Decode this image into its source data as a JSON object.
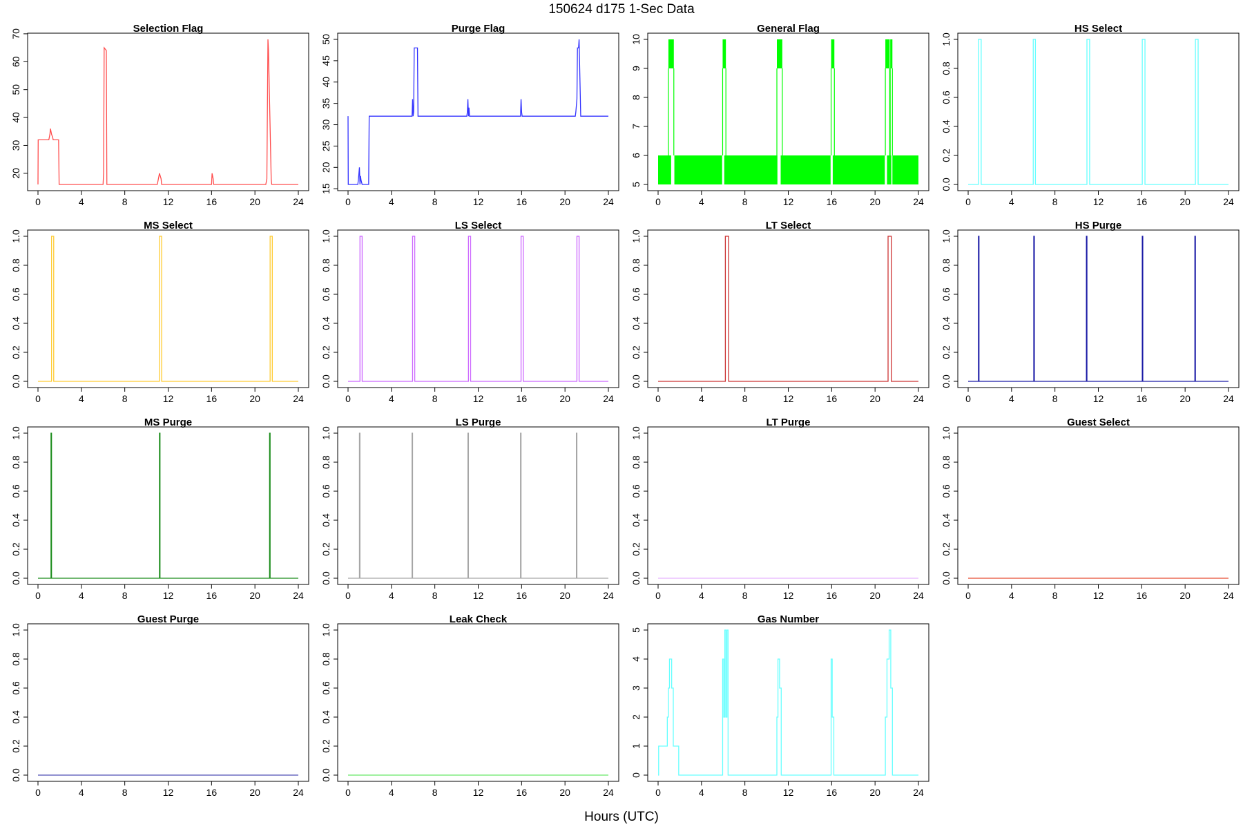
{
  "figure": {
    "title": "150624   d175   1-Sec Data",
    "xlabel": "Hours (UTC)"
  },
  "chart_data": [
    {
      "type": "line",
      "title": "Selection Flag",
      "color": "#ff4d4d",
      "xlim": [
        0,
        24
      ],
      "ylim": [
        16,
        68
      ],
      "xticks": [
        0,
        4,
        8,
        12,
        16,
        20,
        24
      ],
      "yticks": [
        20,
        30,
        40,
        50,
        60,
        70
      ],
      "x": [
        0,
        0.02,
        1.0,
        1.05,
        1.1,
        1.15,
        1.25,
        1.35,
        1.4,
        1.45,
        1.9,
        1.95,
        6.0,
        6.05,
        6.1,
        6.3,
        6.35,
        6.4,
        11.0,
        11.1,
        11.2,
        11.35,
        11.4,
        16.0,
        16.05,
        16.15,
        16.2,
        21.0,
        21.05,
        21.1,
        21.2,
        21.25,
        21.5,
        21.55,
        21.7,
        21.75,
        24.0
      ],
      "y": [
        16,
        32,
        32,
        33,
        34,
        36,
        34,
        33,
        32,
        32,
        32,
        16,
        16,
        20,
        65,
        64,
        16,
        16,
        16,
        18,
        20,
        18,
        16,
        16,
        20,
        18,
        16,
        16,
        17,
        18,
        68,
        64,
        18,
        16,
        16,
        16,
        16
      ]
    },
    {
      "type": "line",
      "title": "Purge Flag",
      "color": "#3333ff",
      "xlim": [
        0,
        24
      ],
      "ylim": [
        16,
        50
      ],
      "xticks": [
        0,
        4,
        8,
        12,
        16,
        20,
        24
      ],
      "yticks": [
        15,
        20,
        25,
        30,
        35,
        40,
        45,
        50
      ],
      "x": [
        0,
        0.02,
        0.9,
        0.95,
        1.05,
        1.1,
        1.15,
        1.2,
        1.3,
        1.35,
        1.9,
        1.95,
        5.9,
        5.95,
        6.0,
        6.05,
        6.1,
        6.4,
        6.45,
        10.95,
        11.0,
        11.05,
        11.1,
        11.15,
        11.2,
        11.25,
        15.9,
        15.95,
        16.0,
        16.05,
        16.1,
        20.95,
        21.0,
        21.1,
        21.15,
        21.25,
        21.3,
        21.45,
        21.5,
        24.0
      ],
      "y": [
        32,
        16,
        16,
        17,
        20,
        16,
        18,
        17,
        16,
        16,
        16,
        32,
        32,
        36,
        32,
        33,
        48,
        48,
        32,
        32,
        33,
        36,
        32,
        34,
        32,
        32,
        32,
        36,
        33,
        32,
        32,
        32,
        33,
        36,
        48,
        48,
        50,
        32,
        32,
        32
      ]
    },
    {
      "type": "area",
      "title": "General Flag",
      "color": "#00ff00",
      "xlim": [
        0,
        24
      ],
      "ylim": [
        5,
        10
      ],
      "xticks": [
        0,
        4,
        8,
        12,
        16,
        20,
        24
      ],
      "yticks": [
        5,
        6,
        7,
        8,
        9,
        10
      ],
      "band": {
        "low": 5,
        "high": 6,
        "gaps": [
          [
            1.2,
            1.5
          ],
          [
            5.9,
            6.1
          ],
          [
            11.0,
            11.3
          ],
          [
            15.9,
            16.1
          ],
          [
            20.9,
            21.1
          ],
          [
            21.5,
            21.6
          ]
        ]
      },
      "spikes": [
        {
          "x0": 0.95,
          "x1": 1.45,
          "top": 10,
          "mid": 9
        },
        {
          "x0": 5.95,
          "x1": 6.25,
          "top": 10,
          "mid": 9
        },
        {
          "x0": 10.95,
          "x1": 11.45,
          "top": 10,
          "mid": 9
        },
        {
          "x0": 15.95,
          "x1": 16.25,
          "top": 10,
          "mid": 9
        },
        {
          "x0": 20.95,
          "x1": 21.35,
          "top": 10,
          "mid": 9
        },
        {
          "x0": 21.4,
          "x1": 21.6,
          "top": 10,
          "mid": 9
        }
      ]
    },
    {
      "type": "line",
      "title": "HS Select",
      "color": "#66ffff",
      "xlim": [
        0,
        24
      ],
      "ylim": [
        0,
        1
      ],
      "xticks": [
        0,
        4,
        8,
        12,
        16,
        20,
        24
      ],
      "yticks": [
        0.0,
        0.2,
        0.4,
        0.6,
        0.8,
        1.0
      ],
      "x": [
        0,
        0.95,
        0.95,
        1.2,
        1.2,
        6.0,
        6.0,
        6.2,
        6.2,
        10.95,
        10.95,
        11.2,
        11.2,
        16.05,
        16.05,
        16.3,
        16.3,
        20.95,
        20.95,
        21.2,
        21.2,
        24.0
      ],
      "y": [
        0,
        0,
        1,
        1,
        0,
        0,
        1,
        1,
        0,
        0,
        1,
        1,
        0,
        0,
        1,
        1,
        0,
        0,
        1,
        1,
        0,
        0
      ]
    },
    {
      "type": "line",
      "title": "MS Select",
      "color": "#ffcc33",
      "xlim": [
        0,
        24
      ],
      "ylim": [
        0,
        1
      ],
      "xticks": [
        0,
        4,
        8,
        12,
        16,
        20,
        24
      ],
      "yticks": [
        0.0,
        0.2,
        0.4,
        0.6,
        0.8,
        1.0
      ],
      "x": [
        0,
        1.25,
        1.25,
        1.45,
        1.45,
        11.2,
        11.2,
        11.4,
        11.4,
        21.4,
        21.4,
        21.6,
        21.6,
        24.0
      ],
      "y": [
        0,
        0,
        1,
        1,
        0,
        0,
        1,
        1,
        0,
        0,
        1,
        1,
        0,
        0
      ]
    },
    {
      "type": "line",
      "title": "LS Select",
      "color": "#cc66ff",
      "xlim": [
        0,
        24
      ],
      "ylim": [
        0,
        1
      ],
      "xticks": [
        0,
        4,
        8,
        12,
        16,
        20,
        24
      ],
      "yticks": [
        0.0,
        0.2,
        0.4,
        0.6,
        0.8,
        1.0
      ],
      "x": [
        0,
        1.1,
        1.1,
        1.3,
        1.3,
        5.95,
        5.95,
        6.15,
        6.15,
        11.1,
        11.1,
        11.3,
        11.3,
        15.95,
        15.95,
        16.15,
        16.15,
        21.1,
        21.1,
        21.3,
        21.3,
        24.0
      ],
      "y": [
        0,
        0,
        1,
        1,
        0,
        0,
        1,
        1,
        0,
        0,
        1,
        1,
        0,
        0,
        1,
        1,
        0,
        0,
        1,
        1,
        0,
        0
      ]
    },
    {
      "type": "line",
      "title": "LT Select",
      "color": "#cc3333",
      "xlim": [
        0,
        24
      ],
      "ylim": [
        0,
        1
      ],
      "xticks": [
        0,
        4,
        8,
        12,
        16,
        20,
        24
      ],
      "yticks": [
        0.0,
        0.2,
        0.4,
        0.6,
        0.8,
        1.0
      ],
      "x": [
        0,
        6.2,
        6.2,
        6.5,
        6.5,
        21.2,
        21.2,
        21.5,
        21.5,
        24.0
      ],
      "y": [
        0,
        0,
        1,
        1,
        0,
        0,
        1,
        1,
        0,
        0
      ]
    },
    {
      "type": "line",
      "title": "HS Purge",
      "color": "#1a1aa6",
      "xlim": [
        0,
        24
      ],
      "ylim": [
        0,
        1
      ],
      "xticks": [
        0,
        4,
        8,
        12,
        16,
        20,
        24
      ],
      "yticks": [
        0.0,
        0.2,
        0.4,
        0.6,
        0.8,
        1.0
      ],
      "x": [
        0,
        0.95,
        0.95,
        1.0,
        1.0,
        6.05,
        6.05,
        6.1,
        6.1,
        10.9,
        10.9,
        10.95,
        10.95,
        16.05,
        16.05,
        16.1,
        16.1,
        20.9,
        20.9,
        20.95,
        20.95,
        24.0
      ],
      "y": [
        0,
        0,
        1,
        1,
        0,
        0,
        1,
        1,
        0,
        0,
        1,
        1,
        0,
        0,
        1,
        1,
        0,
        0,
        1,
        1,
        0,
        0
      ]
    },
    {
      "type": "line",
      "title": "MS Purge",
      "color": "#1a8c1a",
      "xlim": [
        0,
        24
      ],
      "ylim": [
        0,
        1
      ],
      "xticks": [
        0,
        4,
        8,
        12,
        16,
        20,
        24
      ],
      "yticks": [
        0.0,
        0.2,
        0.4,
        0.6,
        0.8,
        1.0
      ],
      "x": [
        0,
        1.2,
        1.2,
        1.25,
        1.25,
        11.2,
        11.2,
        11.25,
        11.25,
        21.35,
        21.35,
        21.4,
        21.4,
        24.0
      ],
      "y": [
        0,
        0,
        1,
        1,
        0,
        0,
        1,
        1,
        0,
        0,
        1,
        1,
        0,
        0
      ]
    },
    {
      "type": "line",
      "title": "LS Purge",
      "color": "#a6a6a6",
      "xlim": [
        0,
        24
      ],
      "ylim": [
        0,
        1
      ],
      "xticks": [
        0,
        4,
        8,
        12,
        16,
        20,
        24
      ],
      "yticks": [
        0.0,
        0.2,
        0.4,
        0.6,
        0.8,
        1.0
      ],
      "x": [
        0,
        1.05,
        1.05,
        1.1,
        1.1,
        5.9,
        5.9,
        5.95,
        5.95,
        11.05,
        11.05,
        11.1,
        11.1,
        15.9,
        15.9,
        15.95,
        15.95,
        21.05,
        21.05,
        21.1,
        21.1,
        24.0
      ],
      "y": [
        0,
        0,
        1,
        1,
        0,
        0,
        1,
        1,
        0,
        0,
        1,
        1,
        0,
        0,
        1,
        1,
        0,
        0,
        1,
        1,
        0,
        0
      ]
    },
    {
      "type": "line",
      "title": "LT Purge",
      "color": "#e6b3ff",
      "xlim": [
        0,
        24
      ],
      "ylim": [
        0,
        1
      ],
      "xticks": [
        0,
        4,
        8,
        12,
        16,
        20,
        24
      ],
      "yticks": [
        0.0,
        0.2,
        0.4,
        0.6,
        0.8,
        1.0
      ],
      "x": [
        0,
        24
      ],
      "y": [
        0,
        0
      ]
    },
    {
      "type": "line",
      "title": "Guest Select",
      "color": "#e64d33",
      "xlim": [
        0,
        24
      ],
      "ylim": [
        0,
        1
      ],
      "xticks": [
        0,
        4,
        8,
        12,
        16,
        20,
        24
      ],
      "yticks": [
        0.0,
        0.2,
        0.4,
        0.6,
        0.8,
        1.0
      ],
      "x": [
        0,
        24
      ],
      "y": [
        0,
        0
      ]
    },
    {
      "type": "line",
      "title": "Guest Purge",
      "color": "#4d4db3",
      "xlim": [
        0,
        24
      ],
      "ylim": [
        0,
        1
      ],
      "xticks": [
        0,
        4,
        8,
        12,
        16,
        20,
        24
      ],
      "yticks": [
        0.0,
        0.2,
        0.4,
        0.6,
        0.8,
        1.0
      ],
      "x": [
        0,
        24
      ],
      "y": [
        0,
        0
      ]
    },
    {
      "type": "line",
      "title": "Leak Check",
      "color": "#66e666",
      "xlim": [
        0,
        24
      ],
      "ylim": [
        0,
        1
      ],
      "xticks": [
        0,
        4,
        8,
        12,
        16,
        20,
        24
      ],
      "yticks": [
        0.0,
        0.2,
        0.4,
        0.6,
        0.8,
        1.0
      ],
      "x": [
        0,
        24
      ],
      "y": [
        0,
        0
      ]
    },
    {
      "type": "line",
      "title": "Gas Number",
      "color": "#66ffff",
      "xlim": [
        0,
        24
      ],
      "ylim": [
        0,
        5
      ],
      "xticks": [
        0,
        4,
        8,
        12,
        16,
        20,
        24
      ],
      "yticks": [
        0,
        1,
        2,
        3,
        4,
        5
      ],
      "x": [
        0,
        0.05,
        0.05,
        0.85,
        0.85,
        0.95,
        0.95,
        1.05,
        1.05,
        1.25,
        1.25,
        1.4,
        1.4,
        1.9,
        1.9,
        5.95,
        5.95,
        6.05,
        6.05,
        6.15,
        6.15,
        6.25,
        6.25,
        6.35,
        6.35,
        6.45,
        6.45,
        10.95,
        10.95,
        11.05,
        11.05,
        11.2,
        11.2,
        11.35,
        11.35,
        11.45,
        11.45,
        15.95,
        15.95,
        16.05,
        16.05,
        16.2,
        16.2,
        16.3,
        16.3,
        20.95,
        20.95,
        21.1,
        21.1,
        21.3,
        21.3,
        21.45,
        21.45,
        21.6,
        21.6,
        24.0
      ],
      "y": [
        0,
        0,
        1,
        1,
        2,
        2,
        3,
        3,
        4,
        4,
        3,
        3,
        1,
        1,
        0,
        0,
        4,
        4,
        2,
        2,
        5,
        5,
        2,
        2,
        5,
        5,
        0,
        0,
        2,
        2,
        4,
        4,
        3,
        3,
        0,
        0,
        0,
        0,
        4,
        4,
        2,
        2,
        0,
        0,
        0,
        0,
        2,
        2,
        4,
        4,
        5,
        5,
        3,
        3,
        0,
        0
      ]
    }
  ]
}
